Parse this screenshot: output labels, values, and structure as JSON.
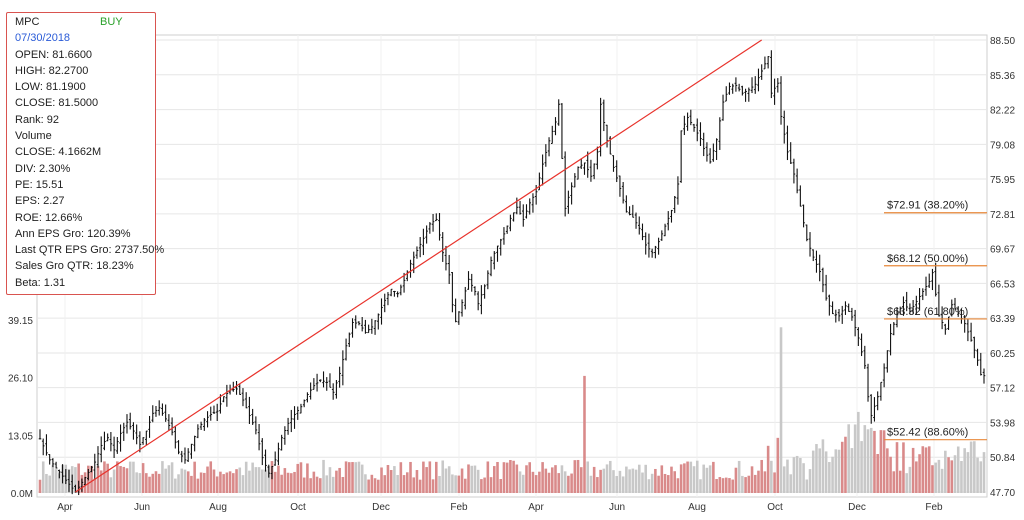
{
  "info": {
    "ticker": "MPC",
    "signal": "BUY",
    "date": "07/30/2018",
    "open": "OPEN: 81.6600",
    "high": "HIGH: 82.2700",
    "low": "LOW: 81.1900",
    "close": "CLOSE: 81.5000",
    "rank": "Rank: 92",
    "volume_label": "Volume",
    "volume_close": "CLOSE: 4.1662M",
    "div": "DIV: 2.30%",
    "pe": "PE: 15.51",
    "eps": "EPS: 2.27",
    "roe": "ROE: 12.66%",
    "ann_eps": "Ann EPS Gro: 120.39%",
    "last_qtr_eps": "Last QTR EPS Gro: 2737.50%",
    "sales_gro": "Sales Gro QTR: 18.23%",
    "beta": "Beta: 1.31"
  },
  "colors": {
    "price": "#111111",
    "trendline": "#e8322b",
    "fib_line": "#e8883a",
    "volume_up": "#d98a8a",
    "volume_down": "#c8c8c8",
    "grid": "#e6e6e6"
  },
  "chart_data": {
    "type": "bar",
    "subtype": "ohlc-price-with-volume",
    "x_ticks": [
      "Apr",
      "Jun",
      "Aug",
      "Oct",
      "Dec",
      "Feb",
      "Apr",
      "Jun",
      "Aug",
      "Oct",
      "Dec",
      "Feb"
    ],
    "y_ticks_right": [
      "88.50",
      "85.36",
      "82.22",
      "79.08",
      "75.95",
      "72.81",
      "69.67",
      "66.53",
      "63.39",
      "60.25",
      "57.12",
      "53.98",
      "50.84",
      "47.70"
    ],
    "y_ticks_left_volume": [
      "0.0M",
      "13.05",
      "26.10",
      "39.15"
    ],
    "price_range": [
      47.7,
      88.5
    ],
    "volume_range": [
      0,
      39.15
    ],
    "price_path": [
      [
        0,
        52.5
      ],
      [
        3,
        50.6
      ],
      [
        6,
        49.5
      ],
      [
        9,
        48.4
      ],
      [
        11,
        47.7
      ],
      [
        14,
        49.0
      ],
      [
        17,
        50.4
      ],
      [
        19,
        51.9
      ],
      [
        21,
        52.6
      ],
      [
        23,
        51.5
      ],
      [
        25,
        53.0
      ],
      [
        27,
        54.0
      ],
      [
        29,
        53.2
      ],
      [
        31,
        52.0
      ],
      [
        33,
        53.2
      ],
      [
        35,
        54.8
      ],
      [
        37,
        55.3
      ],
      [
        39,
        54.3
      ],
      [
        41,
        53.1
      ],
      [
        43,
        51.3
      ],
      [
        45,
        50.6
      ],
      [
        47,
        52.0
      ],
      [
        49,
        53.4
      ],
      [
        51,
        54.2
      ],
      [
        53,
        54.7
      ],
      [
        55,
        55.0
      ],
      [
        57,
        56.3
      ],
      [
        59,
        56.9
      ],
      [
        61,
        57.0
      ],
      [
        63,
        56.0
      ],
      [
        65,
        54.6
      ],
      [
        67,
        53.3
      ],
      [
        69,
        50.8
      ],
      [
        71,
        49.4
      ],
      [
        73,
        50.6
      ],
      [
        75,
        52.6
      ],
      [
        77,
        53.9
      ],
      [
        79,
        54.7
      ],
      [
        81,
        55.4
      ],
      [
        83,
        56.5
      ],
      [
        85,
        57.3
      ],
      [
        87,
        57.8
      ],
      [
        89,
        57.6
      ],
      [
        91,
        56.7
      ],
      [
        93,
        58.4
      ],
      [
        95,
        60.9
      ],
      [
        97,
        63.0
      ],
      [
        99,
        62.9
      ],
      [
        101,
        62.1
      ],
      [
        103,
        62.6
      ],
      [
        105,
        63.7
      ],
      [
        107,
        65.0
      ],
      [
        109,
        66.0
      ],
      [
        111,
        65.6
      ],
      [
        113,
        66.8
      ],
      [
        115,
        68.3
      ],
      [
        117,
        69.5
      ],
      [
        119,
        70.6
      ],
      [
        121,
        71.9
      ],
      [
        123,
        72.3
      ],
      [
        124,
        70.9
      ],
      [
        125,
        69.3
      ],
      [
        127,
        67.3
      ],
      [
        128,
        64.6
      ],
      [
        129,
        63.1
      ],
      [
        131,
        64.8
      ],
      [
        133,
        66.9
      ],
      [
        135,
        65.8
      ],
      [
        136,
        64.7
      ],
      [
        138,
        66.3
      ],
      [
        140,
        68.6
      ],
      [
        142,
        69.9
      ],
      [
        144,
        71.0
      ],
      [
        146,
        72.4
      ],
      [
        148,
        73.4
      ],
      [
        150,
        72.3
      ],
      [
        152,
        73.8
      ],
      [
        154,
        74.8
      ],
      [
        156,
        77.3
      ],
      [
        158,
        79.4
      ],
      [
        160,
        81.1
      ],
      [
        161,
        82.7
      ],
      [
        162,
        77.8
      ],
      [
        163,
        73.3
      ],
      [
        165,
        75.3
      ],
      [
        167,
        77.0
      ],
      [
        169,
        77.4
      ],
      [
        171,
        76.2
      ],
      [
        173,
        78.4
      ],
      [
        174,
        82.7
      ],
      [
        176,
        79.4
      ],
      [
        178,
        77.0
      ],
      [
        180,
        75.1
      ],
      [
        182,
        73.0
      ],
      [
        184,
        72.5
      ],
      [
        186,
        71.5
      ],
      [
        188,
        70.0
      ],
      [
        190,
        69.3
      ],
      [
        192,
        70.3
      ],
      [
        194,
        71.7
      ],
      [
        196,
        73.1
      ],
      [
        198,
        75.5
      ],
      [
        199,
        80.3
      ],
      [
        201,
        81.5
      ],
      [
        203,
        80.6
      ],
      [
        205,
        79.6
      ],
      [
        206,
        78.7
      ],
      [
        208,
        77.5
      ],
      [
        210,
        79.5
      ],
      [
        212,
        82.9
      ],
      [
        214,
        84.3
      ],
      [
        216,
        84.4
      ],
      [
        218,
        83.7
      ],
      [
        220,
        84.0
      ],
      [
        222,
        84.5
      ],
      [
        224,
        85.7
      ],
      [
        226,
        87.0
      ],
      [
        227,
        83.7
      ],
      [
        229,
        84.6
      ],
      [
        230,
        81.6
      ],
      [
        232,
        78.4
      ],
      [
        234,
        76.4
      ],
      [
        236,
        73.5
      ],
      [
        238,
        70.5
      ],
      [
        240,
        68.9
      ],
      [
        242,
        67.6
      ],
      [
        244,
        65.2
      ],
      [
        246,
        63.8
      ],
      [
        248,
        63.6
      ],
      [
        250,
        64.5
      ],
      [
        252,
        63.5
      ],
      [
        254,
        61.6
      ],
      [
        256,
        59.1
      ],
      [
        257,
        56.3
      ],
      [
        258,
        54.6
      ],
      [
        260,
        56.3
      ],
      [
        262,
        58.9
      ],
      [
        264,
        62.0
      ],
      [
        266,
        63.7
      ],
      [
        268,
        64.8
      ],
      [
        270,
        64.0
      ],
      [
        272,
        64.9
      ],
      [
        274,
        65.8
      ],
      [
        276,
        66.7
      ],
      [
        277,
        67.5
      ],
      [
        279,
        63.6
      ],
      [
        281,
        62.4
      ],
      [
        283,
        64.6
      ],
      [
        285,
        63.8
      ],
      [
        287,
        62.9
      ],
      [
        289,
        61.4
      ],
      [
        291,
        59.6
      ],
      [
        292,
        58.3
      ],
      [
        293,
        58.2
      ]
    ],
    "trendline": [
      [
        11,
        47.7
      ],
      [
        224,
        88.5
      ]
    ],
    "fib_levels": [
      {
        "label": "$72.91 (38.20%)",
        "value": 72.91
      },
      {
        "label": "$68.12 (50.00%)",
        "value": 68.12
      },
      {
        "label": "$63.32 (61.80%)",
        "value": 63.32
      },
      {
        "label": "$52.42 (88.60%)",
        "value": 52.42
      }
    ],
    "volume_spikes": [
      [
        169,
        26.5
      ],
      [
        230,
        37.5
      ]
    ]
  }
}
